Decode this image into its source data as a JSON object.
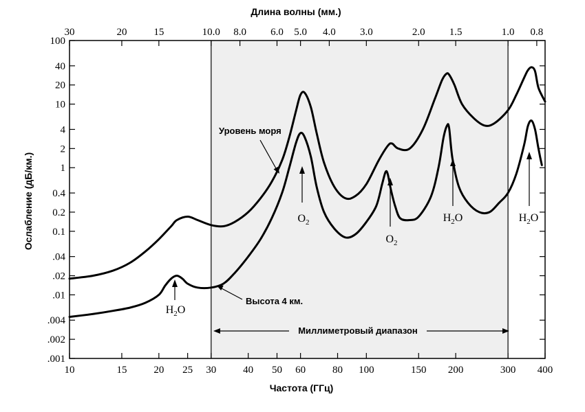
{
  "chart_data": {
    "type": "line",
    "xlabel": "Частота (ГГц)",
    "ylabel": "Ослабление (дБ/км.)",
    "top_axis_label": "Длина волны (мм.)",
    "x_scale": "log",
    "y_scale": "log",
    "xlim": [
      10,
      400
    ],
    "ylim": [
      0.001,
      100
    ],
    "x_ticks": [
      10,
      15,
      20,
      25,
      30,
      40,
      50,
      60,
      80,
      100,
      150,
      200,
      300,
      400
    ],
    "x_tick_labels": [
      "10",
      "15",
      "20",
      "25",
      "30",
      "40",
      "50",
      "60",
      "80",
      "100",
      "150",
      "200",
      "300",
      "400"
    ],
    "y_ticks": [
      0.001,
      0.002,
      0.004,
      0.01,
      0.02,
      0.04,
      0.1,
      0.2,
      0.4,
      1,
      2,
      4,
      10,
      20,
      40,
      100
    ],
    "y_tick_labels": [
      ".001",
      ".002",
      ".004",
      ".01",
      ".02",
      ".04",
      "0.1",
      "0.2",
      "0.4",
      "1",
      "2",
      "4",
      "10",
      "20",
      "40",
      "100"
    ],
    "top_ticks_mm": [
      30,
      20,
      15,
      10,
      8,
      6,
      5,
      4,
      3,
      2,
      1.5,
      1,
      0.8
    ],
    "top_tick_labels": [
      "30",
      "20",
      "15",
      "10.0",
      "8.0",
      "6.0",
      "5.0",
      "4.0",
      "3.0",
      "2.0",
      "1.5",
      "1.0",
      "0.8"
    ],
    "shaded_band": {
      "x": [
        30,
        300
      ],
      "label": "Миллиметровый диапазон"
    },
    "grid": false,
    "series": [
      {
        "name": "Уровень моря",
        "x": [
          10,
          12,
          14,
          16,
          18,
          20,
          22,
          23,
          25,
          27,
          30,
          33,
          36,
          40,
          44,
          48,
          52,
          55,
          58,
          60,
          62,
          65,
          68,
          72,
          78,
          85,
          92,
          100,
          110,
          118,
          122,
          128,
          140,
          155,
          170,
          180,
          186,
          190,
          198,
          210,
          230,
          250,
          270,
          300,
          320,
          340,
          350,
          360,
          370,
          380,
          400
        ],
        "y": [
          0.018,
          0.02,
          0.024,
          0.032,
          0.048,
          0.075,
          0.12,
          0.15,
          0.17,
          0.15,
          0.125,
          0.12,
          0.14,
          0.2,
          0.33,
          0.6,
          1.3,
          3.0,
          8.0,
          14,
          15,
          9,
          3.5,
          1.2,
          0.5,
          0.33,
          0.36,
          0.55,
          1.3,
          2.2,
          2.4,
          2.0,
          2.0,
          4.0,
          12,
          24,
          30,
          29,
          20,
          10,
          6,
          4.6,
          5,
          8,
          14,
          26,
          34,
          38,
          33,
          18,
          11
        ]
      },
      {
        "name": "Высота 4 км.",
        "x": [
          10,
          12,
          14,
          16,
          18,
          20,
          21,
          22,
          23,
          24,
          25,
          27,
          30,
          33,
          36,
          40,
          44,
          48,
          52,
          55,
          58,
          60,
          62,
          65,
          68,
          72,
          78,
          85,
          92,
          100,
          108,
          113,
          116,
          118,
          121,
          125,
          130,
          140,
          150,
          165,
          175,
          182,
          187,
          190,
          195,
          205,
          220,
          240,
          260,
          280,
          300,
          320,
          340,
          350,
          360,
          370,
          380,
          390
        ],
        "y": [
          0.0045,
          0.005,
          0.0056,
          0.0063,
          0.0075,
          0.01,
          0.014,
          0.018,
          0.02,
          0.018,
          0.015,
          0.013,
          0.013,
          0.015,
          0.022,
          0.04,
          0.075,
          0.16,
          0.4,
          1.0,
          2.5,
          3.5,
          3.0,
          1.5,
          0.5,
          0.2,
          0.11,
          0.08,
          0.09,
          0.14,
          0.25,
          0.55,
          0.85,
          0.8,
          0.45,
          0.25,
          0.16,
          0.15,
          0.17,
          0.35,
          1.0,
          3.0,
          4.6,
          4.2,
          1.4,
          0.5,
          0.28,
          0.2,
          0.2,
          0.28,
          0.4,
          0.8,
          2.3,
          4.5,
          5.5,
          4.0,
          2.0,
          1.1
        ]
      }
    ],
    "annotations": [
      {
        "text": "Уровень моря"
      },
      {
        "text": "Высота 4 км."
      }
    ],
    "molecules": [
      {
        "base": "O",
        "sub": "2"
      },
      {
        "base": "O",
        "sub": "2"
      },
      {
        "base": "H",
        "sub": "2",
        "tail": "O"
      },
      {
        "base": "H",
        "sub": "2",
        "tail": "O"
      },
      {
        "base": "H",
        "sub": "2",
        "tail": "O"
      }
    ]
  }
}
